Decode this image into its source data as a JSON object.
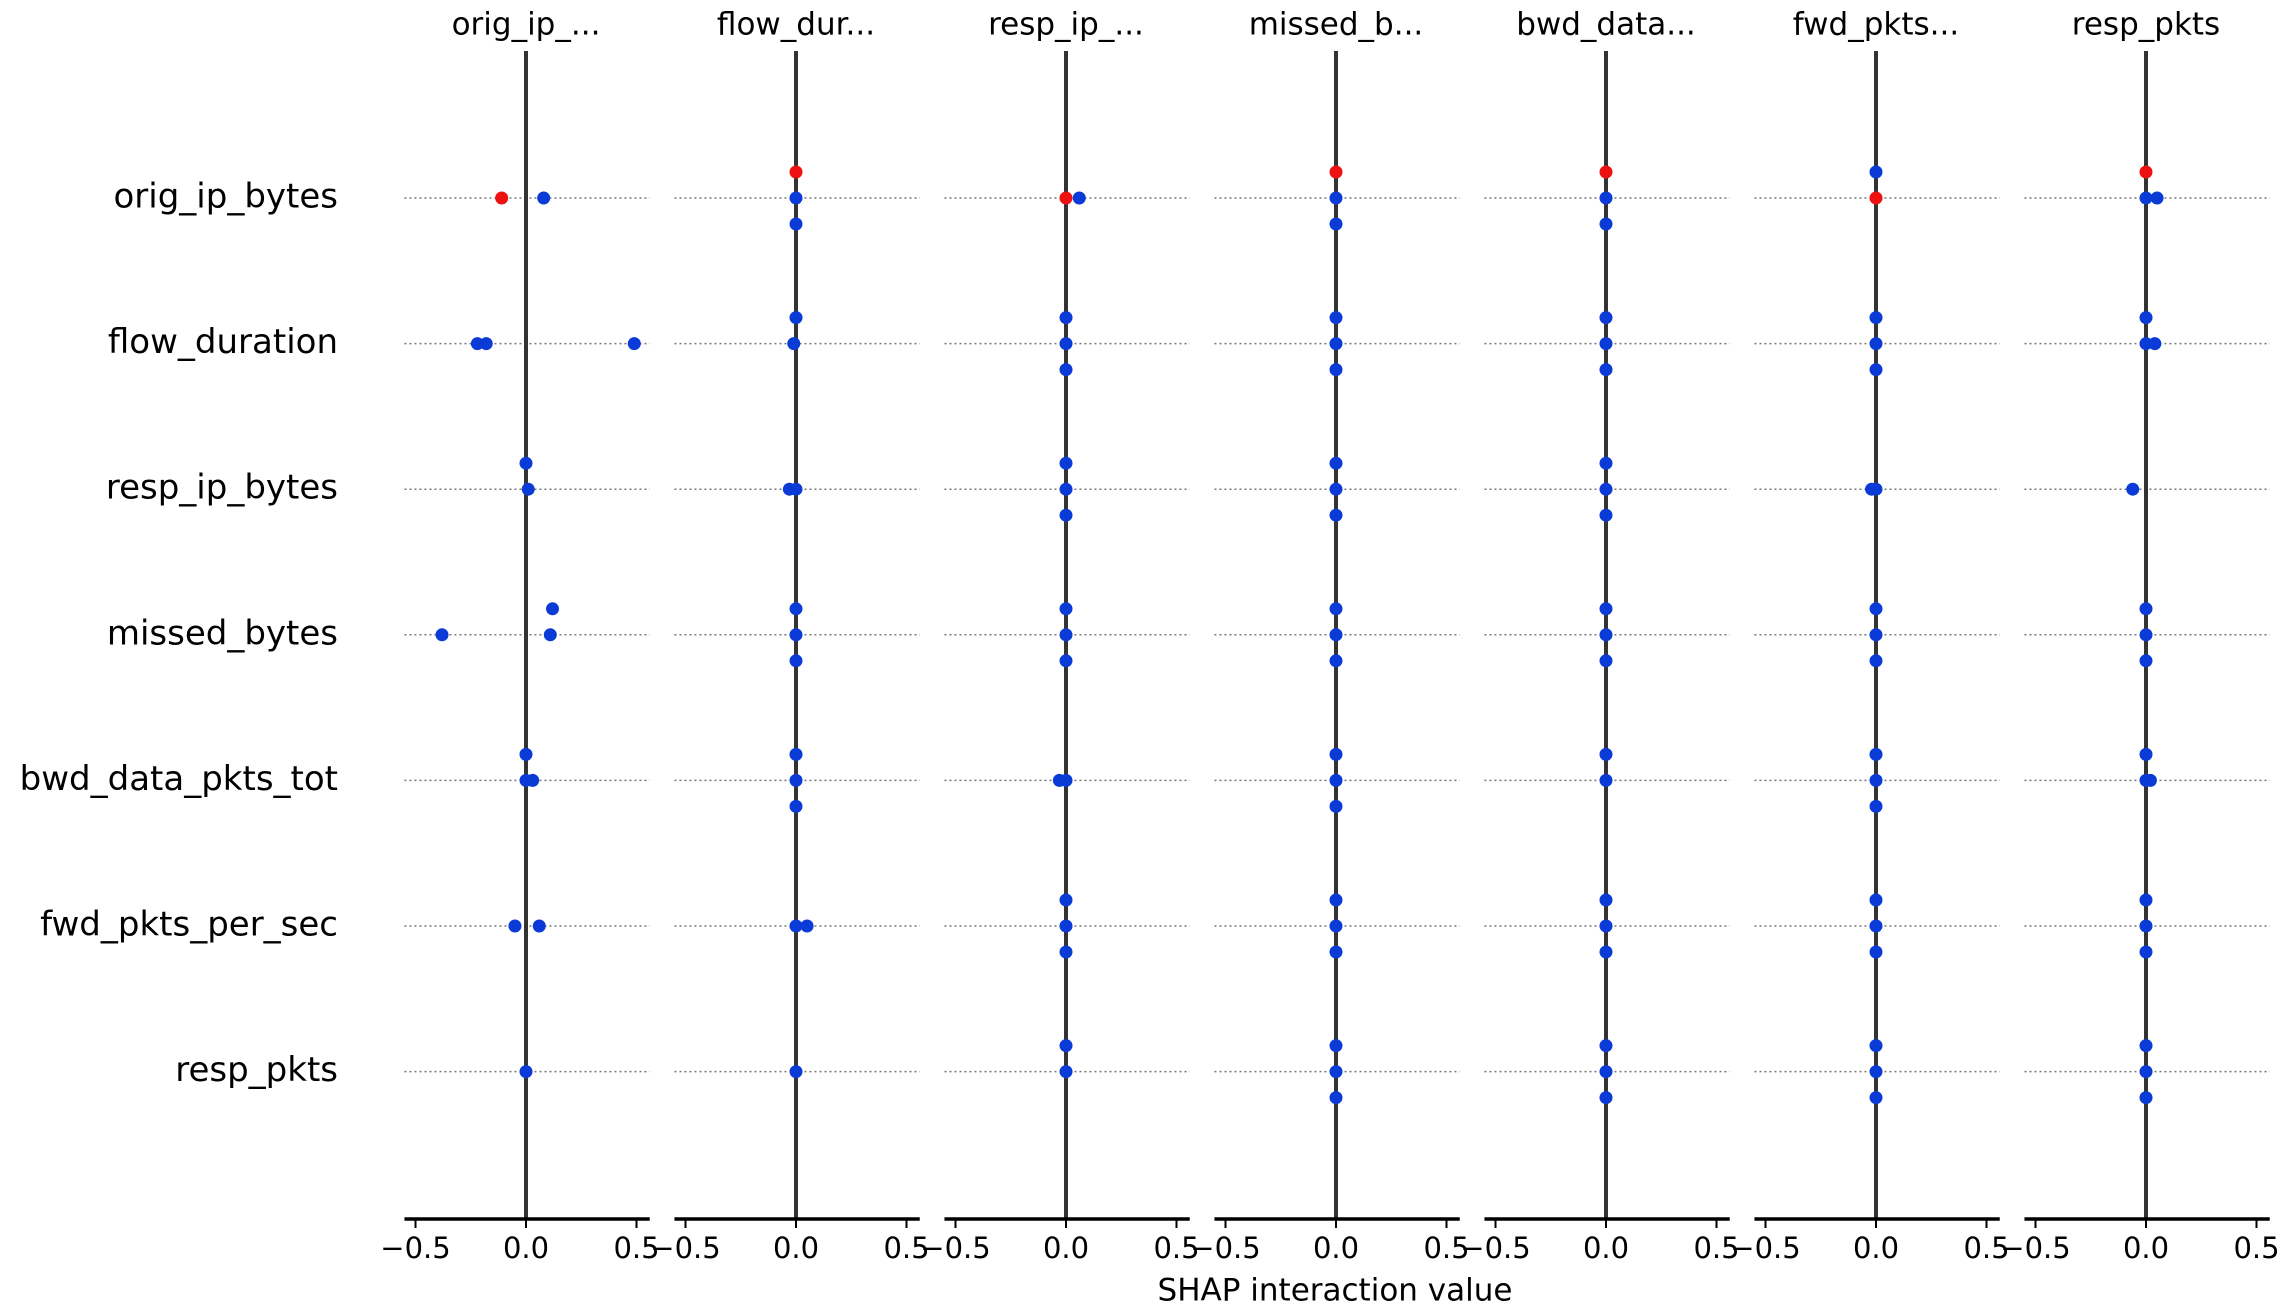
{
  "chart_data": {
    "type": "scatter",
    "xlabel": "SHAP interaction value",
    "rows": [
      "orig_ip_bytes",
      "flow_duration",
      "resp_ip_bytes",
      "missed_bytes",
      "bwd_data_pkts_tot",
      "fwd_pkts_per_sec",
      "resp_pkts"
    ],
    "xlim": [
      -0.55,
      0.56
    ],
    "xticks": [
      {
        "value": -0.5,
        "label": "−0.5"
      },
      {
        "value": 0,
        "label": "0.0"
      },
      0.5
    ],
    "panels": [
      {
        "title": "orig_ip_...",
        "cells": [
          {
            "values": [
              -0.11,
              0.08
            ],
            "colors": [
              "#ee1111",
              "#0b3bd6"
            ]
          },
          {
            "values": [
              -0.22,
              -0.18,
              0.49
            ],
            "colors": [
              "#0b3bd6",
              "#0b3bd6",
              "#0b3bd6"
            ]
          },
          {
            "values": [
              0.01,
              0.0
            ],
            "colors": [
              "#0b3bd6",
              "#0b3bd6"
            ]
          },
          {
            "values": [
              0.11,
              -0.38,
              0.12
            ],
            "colors": [
              "#0b3bd6",
              "#0b3bd6",
              "#0b3bd6"
            ]
          },
          {
            "values": [
              0.03,
              0.0,
              0.0
            ],
            "colors": [
              "#0b3bd6",
              "#0b3bd6",
              "#0b3bd6"
            ]
          },
          {
            "values": [
              -0.05,
              0.06
            ],
            "colors": [
              "#0b3bd6",
              "#0b3bd6"
            ]
          },
          {
            "values": [
              0.0
            ],
            "colors": [
              "#0b3bd6"
            ]
          }
        ]
      },
      {
        "title": "flow_dur...",
        "cells": [
          {
            "values": [
              0,
              0,
              0
            ],
            "colors": [
              "#0b3bd6",
              "#ee1111",
              "#0b3bd6"
            ]
          },
          {
            "values": [
              -0.01,
              0.0
            ],
            "colors": [
              "#0b3bd6",
              "#0b3bd6"
            ]
          },
          {
            "values": [
              -0.03,
              0.0
            ],
            "colors": [
              "#0b3bd6",
              "#0b3bd6"
            ]
          },
          {
            "values": [
              0,
              0,
              0
            ],
            "colors": [
              "#0b3bd6",
              "#0b3bd6",
              "#0b3bd6"
            ]
          },
          {
            "values": [
              0,
              0,
              0
            ],
            "colors": [
              "#0b3bd6",
              "#0b3bd6",
              "#0b3bd6"
            ]
          },
          {
            "values": [
              0.0,
              0.05
            ],
            "colors": [
              "#0b3bd6",
              "#0b3bd6"
            ]
          },
          {
            "values": [
              0.0
            ],
            "colors": [
              "#0b3bd6"
            ]
          }
        ]
      },
      {
        "title": "resp_ip_...",
        "cells": [
          {
            "values": [
              0.0,
              0.06
            ],
            "colors": [
              "#ee1111",
              "#0b3bd6"
            ]
          },
          {
            "values": [
              0,
              0,
              0
            ],
            "colors": [
              "#0b3bd6",
              "#0b3bd6",
              "#0b3bd6"
            ]
          },
          {
            "values": [
              0,
              0,
              0
            ],
            "colors": [
              "#0b3bd6",
              "#0b3bd6",
              "#0b3bd6"
            ]
          },
          {
            "values": [
              0,
              0,
              0
            ],
            "colors": [
              "#0b3bd6",
              "#0b3bd6",
              "#0b3bd6"
            ]
          },
          {
            "values": [
              -0.03,
              0.0
            ],
            "colors": [
              "#0b3bd6",
              "#0b3bd6"
            ]
          },
          {
            "values": [
              0,
              0,
              0
            ],
            "colors": [
              "#0b3bd6",
              "#0b3bd6",
              "#0b3bd6"
            ]
          },
          {
            "values": [
              0,
              0
            ],
            "colors": [
              "#0b3bd6",
              "#0b3bd6"
            ]
          }
        ]
      },
      {
        "title": "missed_b...",
        "cells": [
          {
            "values": [
              0,
              0,
              0
            ],
            "colors": [
              "#0b3bd6",
              "#ee1111",
              "#0b3bd6"
            ]
          },
          {
            "values": [
              0,
              0,
              0
            ],
            "colors": [
              "#0b3bd6",
              "#0b3bd6",
              "#0b3bd6"
            ]
          },
          {
            "values": [
              0,
              0,
              0
            ],
            "colors": [
              "#0b3bd6",
              "#0b3bd6",
              "#0b3bd6"
            ]
          },
          {
            "values": [
              0,
              0,
              0
            ],
            "colors": [
              "#0b3bd6",
              "#0b3bd6",
              "#0b3bd6"
            ]
          },
          {
            "values": [
              0,
              0,
              0
            ],
            "colors": [
              "#0b3bd6",
              "#0b3bd6",
              "#0b3bd6"
            ]
          },
          {
            "values": [
              0,
              0,
              0
            ],
            "colors": [
              "#0b3bd6",
              "#0b3bd6",
              "#0b3bd6"
            ]
          },
          {
            "values": [
              0,
              0,
              0
            ],
            "colors": [
              "#0b3bd6",
              "#0b3bd6",
              "#0b3bd6"
            ]
          }
        ]
      },
      {
        "title": "bwd_data...",
        "cells": [
          {
            "values": [
              0,
              0,
              0
            ],
            "colors": [
              "#0b3bd6",
              "#ee1111",
              "#0b3bd6"
            ]
          },
          {
            "values": [
              0,
              0,
              0
            ],
            "colors": [
              "#0b3bd6",
              "#0b3bd6",
              "#0b3bd6"
            ]
          },
          {
            "values": [
              0,
              0,
              0
            ],
            "colors": [
              "#0b3bd6",
              "#0b3bd6",
              "#0b3bd6"
            ]
          },
          {
            "values": [
              0,
              0,
              0
            ],
            "colors": [
              "#0b3bd6",
              "#0b3bd6",
              "#0b3bd6"
            ]
          },
          {
            "values": [
              0,
              0
            ],
            "colors": [
              "#0b3bd6",
              "#0b3bd6"
            ]
          },
          {
            "values": [
              0,
              0,
              0
            ],
            "colors": [
              "#0b3bd6",
              "#0b3bd6",
              "#0b3bd6"
            ]
          },
          {
            "values": [
              0,
              0,
              0
            ],
            "colors": [
              "#0b3bd6",
              "#0b3bd6",
              "#0b3bd6"
            ]
          }
        ]
      },
      {
        "title": "fwd_pkts...",
        "cells": [
          {
            "values": [
              0,
              0
            ],
            "colors": [
              "#ee1111",
              "#0b3bd6"
            ]
          },
          {
            "values": [
              0,
              0,
              0
            ],
            "colors": [
              "#0b3bd6",
              "#0b3bd6",
              "#0b3bd6"
            ]
          },
          {
            "values": [
              -0.02,
              0.0
            ],
            "colors": [
              "#0b3bd6",
              "#0b3bd6"
            ]
          },
          {
            "values": [
              0,
              0,
              0
            ],
            "colors": [
              "#0b3bd6",
              "#0b3bd6",
              "#0b3bd6"
            ]
          },
          {
            "values": [
              0,
              0,
              0
            ],
            "colors": [
              "#0b3bd6",
              "#0b3bd6",
              "#0b3bd6"
            ]
          },
          {
            "values": [
              0,
              0,
              0
            ],
            "colors": [
              "#0b3bd6",
              "#0b3bd6",
              "#0b3bd6"
            ]
          },
          {
            "values": [
              0,
              0,
              0
            ],
            "colors": [
              "#0b3bd6",
              "#0b3bd6",
              "#0b3bd6"
            ]
          }
        ]
      },
      {
        "title": "resp_pkts",
        "cells": [
          {
            "values": [
              0.0,
              0.05,
              0.0
            ],
            "colors": [
              "#0b3bd6",
              "#0b3bd6",
              "#ee1111"
            ]
          },
          {
            "values": [
              0.0,
              0.04,
              0.0
            ],
            "colors": [
              "#0b3bd6",
              "#0b3bd6",
              "#0b3bd6"
            ]
          },
          {
            "values": [
              -0.06
            ],
            "colors": [
              "#0b3bd6"
            ]
          },
          {
            "values": [
              0,
              0,
              0
            ],
            "colors": [
              "#0b3bd6",
              "#0b3bd6",
              "#0b3bd6"
            ]
          },
          {
            "values": [
              0.0,
              0.02,
              0.0
            ],
            "colors": [
              "#0b3bd6",
              "#0b3bd6",
              "#0b3bd6"
            ]
          },
          {
            "values": [
              0,
              0,
              0
            ],
            "colors": [
              "#0b3bd6",
              "#0b3bd6",
              "#0b3bd6"
            ]
          },
          {
            "values": [
              0,
              0,
              0
            ],
            "colors": [
              "#0b3bd6",
              "#0b3bd6",
              "#0b3bd6"
            ]
          }
        ]
      }
    ]
  }
}
